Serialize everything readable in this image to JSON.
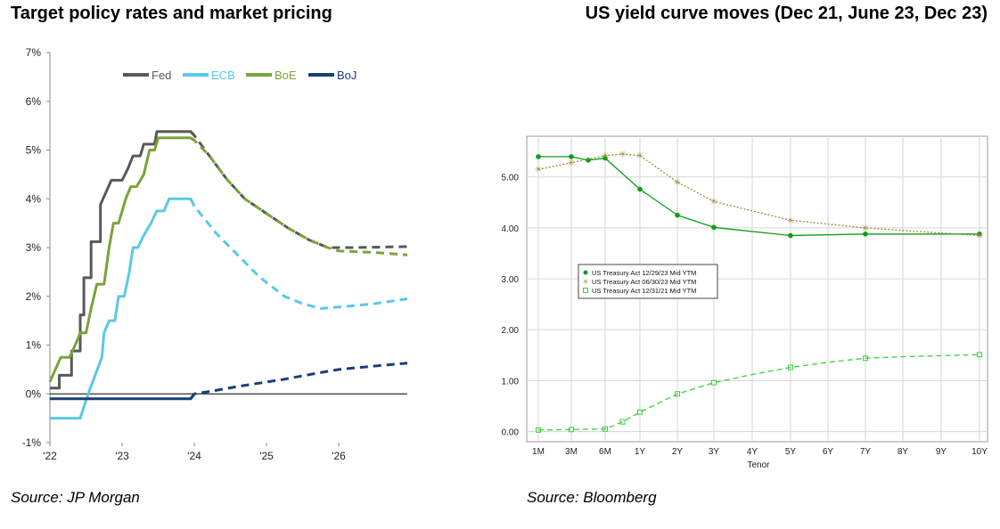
{
  "titles": {
    "left": "Target policy rates and market pricing",
    "right": "US yield curve moves (Dec 21, June 23, Dec 23)"
  },
  "sources": {
    "left": "Source: JP Morgan",
    "right": "Source: Bloomberg"
  },
  "colors": {
    "fed": "#58595b",
    "ecb": "#5bc8e8",
    "boe": "#7aa33b",
    "boj": "#173f7a",
    "dec23": "#0a9e1a",
    "jun23": "#a08a40",
    "dec21": "#39d33a"
  },
  "chart_data": [
    {
      "type": "line",
      "title": "Target policy rates and market pricing",
      "ylim": [
        -1,
        7
      ],
      "xlim": [
        2022.0,
        2026.95
      ],
      "y_ticks": [
        -1,
        0,
        1,
        2,
        3,
        4,
        5,
        6,
        7
      ],
      "y_tick_labels": [
        "-1%",
        "0%",
        "1%",
        "2%",
        "3%",
        "4%",
        "5%",
        "6%",
        "7%"
      ],
      "x_ticks": [
        2022,
        2023,
        2024,
        2025,
        2026
      ],
      "x_tick_labels": [
        "'22",
        "'23",
        "'24",
        "'25",
        "'26"
      ],
      "legend_position": "top",
      "series": [
        {
          "key": "fed",
          "name": "Fed",
          "dashed_from": 2024.0,
          "points": [
            [
              2022.0,
              0.12
            ],
            [
              2022.13,
              0.12
            ],
            [
              2022.13,
              0.38
            ],
            [
              2022.3,
              0.38
            ],
            [
              2022.3,
              0.88
            ],
            [
              2022.42,
              0.88
            ],
            [
              2022.42,
              1.62
            ],
            [
              2022.47,
              1.62
            ],
            [
              2022.47,
              2.38
            ],
            [
              2022.57,
              2.38
            ],
            [
              2022.57,
              3.12
            ],
            [
              2022.7,
              3.12
            ],
            [
              2022.7,
              3.88
            ],
            [
              2022.85,
              4.38
            ],
            [
              2023.0,
              4.38
            ],
            [
              2023.08,
              4.62
            ],
            [
              2023.15,
              4.88
            ],
            [
              2023.25,
              4.88
            ],
            [
              2023.3,
              5.12
            ],
            [
              2023.45,
              5.12
            ],
            [
              2023.48,
              5.38
            ],
            [
              2023.95,
              5.38
            ],
            [
              2024.0,
              5.3
            ],
            [
              2024.2,
              4.9
            ],
            [
              2024.45,
              4.4
            ],
            [
              2024.7,
              4.0
            ],
            [
              2025.0,
              3.7
            ],
            [
              2025.3,
              3.4
            ],
            [
              2025.6,
              3.15
            ],
            [
              2025.85,
              3.0
            ],
            [
              2026.2,
              3.0
            ],
            [
              2026.95,
              3.02
            ]
          ]
        },
        {
          "key": "ecb",
          "name": "ECB",
          "dashed_from": 2024.0,
          "points": [
            [
              2022.0,
              -0.5
            ],
            [
              2022.42,
              -0.5
            ],
            [
              2022.53,
              0.0
            ],
            [
              2022.72,
              0.75
            ],
            [
              2022.75,
              1.25
            ],
            [
              2022.82,
              1.5
            ],
            [
              2022.9,
              1.5
            ],
            [
              2022.95,
              2.0
            ],
            [
              2023.03,
              2.0
            ],
            [
              2023.1,
              2.5
            ],
            [
              2023.15,
              3.0
            ],
            [
              2023.22,
              3.0
            ],
            [
              2023.3,
              3.25
            ],
            [
              2023.4,
              3.5
            ],
            [
              2023.48,
              3.75
            ],
            [
              2023.58,
              3.75
            ],
            [
              2023.65,
              4.0
            ],
            [
              2023.95,
              4.0
            ],
            [
              2024.0,
              3.85
            ],
            [
              2024.3,
              3.3
            ],
            [
              2024.6,
              2.85
            ],
            [
              2024.9,
              2.4
            ],
            [
              2025.25,
              2.0
            ],
            [
              2025.5,
              1.85
            ],
            [
              2025.75,
              1.75
            ],
            [
              2026.0,
              1.78
            ],
            [
              2026.5,
              1.85
            ],
            [
              2026.95,
              1.95
            ]
          ]
        },
        {
          "key": "boe",
          "name": "BoE",
          "dashed_from": 2024.0,
          "points": [
            [
              2022.0,
              0.25
            ],
            [
              2022.15,
              0.75
            ],
            [
              2022.27,
              0.75
            ],
            [
              2022.35,
              1.0
            ],
            [
              2022.42,
              1.25
            ],
            [
              2022.5,
              1.25
            ],
            [
              2022.57,
              1.75
            ],
            [
              2022.65,
              2.25
            ],
            [
              2022.75,
              2.25
            ],
            [
              2022.82,
              3.0
            ],
            [
              2022.88,
              3.5
            ],
            [
              2022.95,
              3.5
            ],
            [
              2023.05,
              4.0
            ],
            [
              2023.12,
              4.25
            ],
            [
              2023.2,
              4.25
            ],
            [
              2023.3,
              4.5
            ],
            [
              2023.38,
              5.0
            ],
            [
              2023.45,
              5.0
            ],
            [
              2023.5,
              5.25
            ],
            [
              2023.95,
              5.25
            ],
            [
              2024.0,
              5.2
            ],
            [
              2024.2,
              4.9
            ],
            [
              2024.45,
              4.4
            ],
            [
              2024.7,
              4.0
            ],
            [
              2025.0,
              3.7
            ],
            [
              2025.3,
              3.4
            ],
            [
              2025.6,
              3.15
            ],
            [
              2025.85,
              3.0
            ],
            [
              2026.0,
              2.93
            ],
            [
              2026.5,
              2.9
            ],
            [
              2026.95,
              2.85
            ]
          ]
        },
        {
          "key": "boj",
          "name": "BoJ",
          "dashed_from": 2024.0,
          "points": [
            [
              2022.0,
              -0.1
            ],
            [
              2023.95,
              -0.1
            ],
            [
              2024.0,
              0.0
            ],
            [
              2024.3,
              0.07
            ],
            [
              2024.6,
              0.15
            ],
            [
              2024.9,
              0.22
            ],
            [
              2025.25,
              0.3
            ],
            [
              2025.5,
              0.37
            ],
            [
              2025.8,
              0.45
            ],
            [
              2026.0,
              0.5
            ],
            [
              2026.5,
              0.57
            ],
            [
              2026.95,
              0.63
            ]
          ]
        }
      ]
    },
    {
      "type": "line",
      "title": "US yield curve moves (Dec 21, June 23, Dec 23)",
      "xlabel": "Tenor",
      "ylim": [
        -0.2,
        5.8
      ],
      "y_ticks": [
        0,
        1,
        2,
        3,
        4,
        5
      ],
      "y_tick_labels": [
        "0.00",
        "1.00",
        "2.00",
        "3.00",
        "4.00",
        "5.00"
      ],
      "categories": [
        "1M",
        "3M",
        "6M",
        "1Y",
        "2Y",
        "3Y",
        "4Y",
        "5Y",
        "6Y",
        "7Y",
        "8Y",
        "9Y",
        "10Y"
      ],
      "x_years": [
        0.0833,
        0.25,
        0.5,
        1,
        2,
        3,
        4,
        5,
        6,
        7,
        8,
        9,
        10
      ],
      "legend_position": "middle-left",
      "series": [
        {
          "key": "dec23",
          "name": "US Treasury Act 12/29/23 Mid YTM",
          "marker": "dot",
          "style": "solid",
          "x": [
            0.0833,
            0.25,
            0.375,
            0.5,
            1,
            2,
            3,
            5,
            7,
            10
          ],
          "y": [
            5.4,
            5.4,
            5.33,
            5.37,
            4.76,
            4.25,
            4.01,
            3.85,
            3.88,
            3.88
          ],
          "marker_x": [
            0.0833,
            0.25,
            0.375,
            0.5,
            1,
            2,
            3,
            5,
            7,
            10
          ]
        },
        {
          "key": "jun23",
          "name": "US Treasury Act 06/30/23 Mid YTM",
          "marker": "star",
          "style": "dotted",
          "x": [
            0.0833,
            0.25,
            0.5,
            0.75,
            1,
            2,
            3,
            5,
            7,
            10
          ],
          "y": [
            5.15,
            5.28,
            5.42,
            5.45,
            5.42,
            4.9,
            4.52,
            4.15,
            4.0,
            3.85
          ],
          "marker_x": [
            0.0833,
            0.25,
            0.5,
            0.75,
            1,
            2,
            3,
            5,
            7,
            10
          ]
        },
        {
          "key": "dec21",
          "name": "US Treasury Act 12/31/21 Mid YTM",
          "marker": "square",
          "style": "dashed",
          "x": [
            0.0833,
            0.25,
            0.5,
            0.75,
            1,
            1.5,
            2,
            3,
            4,
            5,
            6,
            7,
            8,
            9,
            10
          ],
          "y": [
            0.03,
            0.04,
            0.05,
            0.19,
            0.38,
            0.56,
            0.74,
            0.96,
            1.12,
            1.26,
            1.36,
            1.44,
            1.47,
            1.49,
            1.51
          ],
          "marker_x": [
            0.0833,
            0.25,
            0.5,
            0.75,
            1,
            2,
            3,
            5,
            7,
            10
          ]
        }
      ]
    }
  ]
}
